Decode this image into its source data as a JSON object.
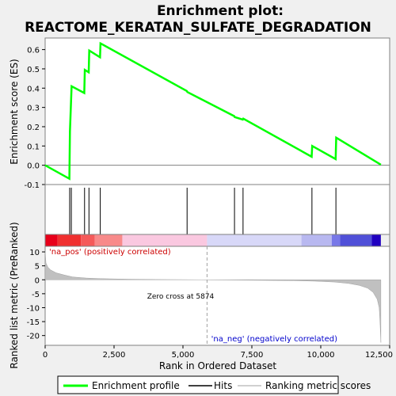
{
  "chart_data": {
    "type": "line",
    "title_line1": "Enrichment plot:",
    "title_line2": "REACTOME_KERATAN_SULFATE_DEGRADATION",
    "es_panel": {
      "ylabel": "Enrichment score (ES)",
      "ylim": [
        -0.1,
        0.66
      ],
      "yticks": [
        -0.1,
        0.0,
        0.1,
        0.2,
        0.3,
        0.4,
        0.5,
        0.6
      ],
      "ytick_labels": [
        "-0.1",
        "0.0",
        "0.1",
        "0.2",
        "0.3",
        "0.4",
        "0.5",
        "0.6"
      ],
      "series": {
        "name": "Enrichment profile",
        "color": "#00ff00",
        "x": [
          0,
          880,
          900,
          960,
          1420,
          1440,
          1580,
          1600,
          1990,
          2010,
          5140,
          5160,
          6860,
          6880,
          7170,
          7190,
          9670,
          9690,
          10540,
          10560,
          12180
        ],
        "y": [
          0.0,
          -0.07,
          0.175,
          0.41,
          0.375,
          0.495,
          0.482,
          0.595,
          0.56,
          0.632,
          0.385,
          0.38,
          0.255,
          0.25,
          0.237,
          0.242,
          0.044,
          0.1,
          0.032,
          0.143,
          0.003
        ]
      }
    },
    "hits_panel": {
      "hits": [
        890,
        950,
        1430,
        1590,
        2000,
        5150,
        6870,
        7180,
        9680,
        10550
      ],
      "color": "#000000"
    },
    "colorbar": {
      "segments": [
        {
          "from": 0,
          "to": 450,
          "color": "#e8001a"
        },
        {
          "from": 450,
          "to": 1300,
          "color": "#f03030"
        },
        {
          "from": 1300,
          "to": 1800,
          "color": "#f55a5a"
        },
        {
          "from": 1800,
          "to": 2800,
          "color": "#f88a8a"
        },
        {
          "from": 2800,
          "to": 5874,
          "color": "#fac8e0"
        },
        {
          "from": 5874,
          "to": 9300,
          "color": "#d8d8f8"
        },
        {
          "from": 9300,
          "to": 10400,
          "color": "#b8b8f0"
        },
        {
          "from": 10400,
          "to": 10700,
          "color": "#7878e8"
        },
        {
          "from": 10700,
          "to": 11850,
          "color": "#5050d8"
        },
        {
          "from": 11850,
          "to": 12180,
          "color": "#2000c0"
        }
      ]
    },
    "rank_panel": {
      "ylabel": "Ranked list metric (PreRanked)",
      "ylim": [
        -23.5,
        12
      ],
      "yticks": [
        -20,
        -15,
        -10,
        -5,
        0,
        5,
        10
      ],
      "ytick_labels": [
        "-20",
        "-15",
        "-10",
        "-5",
        "0",
        "5",
        "10"
      ],
      "xlabel": "Rank in Ordered Dataset",
      "xlim": [
        0,
        12500
      ],
      "xticks": [
        0,
        2500,
        5000,
        7500,
        10000,
        12500
      ],
      "xtick_labels": [
        "0",
        "2,500",
        "5,000",
        "7,500",
        "10,000",
        "12,500"
      ],
      "profile": {
        "x": [
          0,
          30,
          100,
          200,
          400,
          700,
          1000,
          1500,
          2000,
          3000,
          4000,
          5000,
          5874,
          7000,
          8000,
          9000,
          9800,
          10500,
          11000,
          11400,
          11700,
          11900,
          12050,
          12120,
          12150,
          12180
        ],
        "y": [
          10.5,
          6,
          4.5,
          3.5,
          2.5,
          1.7,
          1.0,
          0.6,
          0.4,
          0.2,
          0.1,
          0.05,
          0,
          -0.1,
          -0.2,
          -0.3,
          -0.5,
          -0.8,
          -1.3,
          -2.0,
          -3.0,
          -4.5,
          -7.0,
          -10.0,
          -15.0,
          -22.5
        ]
      },
      "annotation_pos": "'na_pos' (positively correlated)",
      "annotation_neg": "'na_neg' (negatively correlated)",
      "zero_cross_label": "Zero cross at 5874",
      "zero_cross": 5874
    },
    "legend": [
      {
        "label": "Enrichment profile",
        "color": "#00ff00"
      },
      {
        "label": "Hits",
        "color": "#000000"
      },
      {
        "label": "Ranking metric scores",
        "color": "#c0c0c0"
      }
    ]
  }
}
